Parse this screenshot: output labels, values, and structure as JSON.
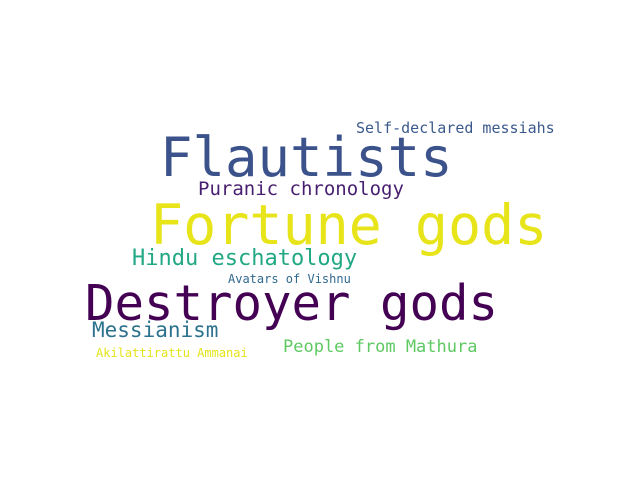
{
  "words": [
    {
      "text": "Destroyer gods",
      "color": "#440154"
    },
    {
      "text": "Fortune gods",
      "color": "#e7e419"
    },
    {
      "text": "Flautists",
      "color": "#3b528b"
    },
    {
      "text": "Hindu eschatology",
      "color": "#22a884"
    },
    {
      "text": "Puranic chronology",
      "color": "#481f70"
    },
    {
      "text": "Messianism",
      "color": "#2c728e"
    },
    {
      "text": "People from Mathura",
      "color": "#5ec962"
    },
    {
      "text": "Self-declared messiahs",
      "color": "#3b5a8c"
    },
    {
      "text": "Avatars of Vishnu",
      "color": "#31688e"
    },
    {
      "text": "Akilattirattu Ammanai",
      "color": "#e4e419"
    }
  ]
}
